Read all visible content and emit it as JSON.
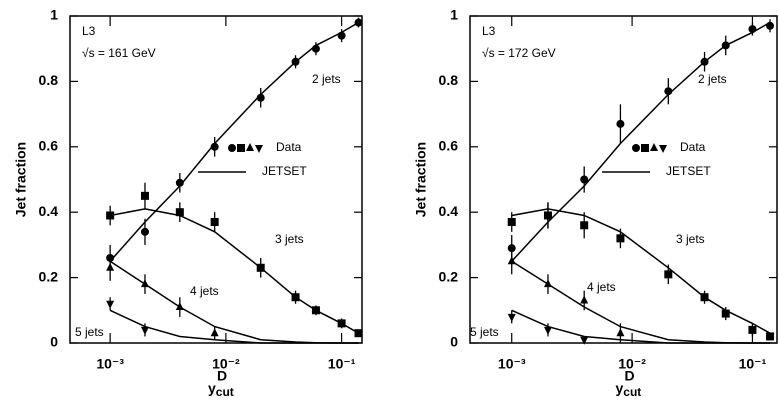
{
  "chart_data": [
    {
      "type": "scatter",
      "annotations": [
        "L3",
        "√s = 161 GeV"
      ],
      "xlabel": {
        "base": "y",
        "sup": "D",
        "sub": "cut"
      },
      "ylabel": "Jet fraction",
      "xscale": "log",
      "x": [
        0.001,
        0.002,
        0.004,
        0.008,
        0.02,
        0.04,
        0.06,
        0.1,
        0.14
      ],
      "xlim": [
        0.00045,
        0.15
      ],
      "xticks": [
        {
          "value": 0.001,
          "label": "10⁻³"
        },
        {
          "value": 0.01,
          "label": "10⁻²"
        },
        {
          "value": 0.1,
          "label": "10⁻¹"
        }
      ],
      "ylim": [
        0,
        1
      ],
      "yticks": [
        0,
        0.2,
        0.4,
        0.6,
        0.8,
        1
      ],
      "legend_labels": [
        "Data",
        "JETSET"
      ],
      "series": [
        {
          "name": "2 jets",
          "marker": "circle",
          "color": "#000000",
          "values": [
            0.26,
            0.34,
            0.49,
            0.6,
            0.75,
            0.86,
            0.9,
            0.94,
            0.98
          ],
          "errors": [
            0.04,
            0.04,
            0.03,
            0.03,
            0.03,
            0.02,
            0.02,
            0.02,
            0.015
          ],
          "model": [
            0.25,
            0.37,
            0.48,
            0.61,
            0.76,
            0.86,
            0.91,
            0.95,
            0.98
          ]
        },
        {
          "name": "3 jets",
          "marker": "square",
          "color": "#000000",
          "values": [
            0.39,
            0.45,
            0.4,
            0.37,
            0.23,
            0.14,
            0.1,
            0.06,
            0.03
          ],
          "errors": [
            0.03,
            0.04,
            0.03,
            0.03,
            0.03,
            0.02,
            0.015,
            0.015,
            0.01
          ],
          "model": [
            0.39,
            0.41,
            0.39,
            0.34,
            0.23,
            0.14,
            0.1,
            0.06,
            0.03
          ]
        },
        {
          "name": "4 jets",
          "marker": "triangle-up",
          "color": "#000000",
          "values": [
            0.23,
            0.18,
            0.11,
            0.03,
            null,
            null,
            null,
            null,
            null
          ],
          "errors": [
            0.04,
            0.03,
            0.03,
            0.02,
            null,
            null,
            null,
            null,
            null
          ],
          "model": [
            0.25,
            0.18,
            0.11,
            0.05,
            0.01,
            0.003,
            0.001,
            0,
            0
          ]
        },
        {
          "name": "5 jets",
          "marker": "triangle-down",
          "color": "#000000",
          "values": [
            0.12,
            0.04,
            null,
            null,
            null,
            null,
            null,
            null,
            null
          ],
          "errors": [
            0.02,
            0.02,
            null,
            null,
            null,
            null,
            null,
            null,
            null
          ],
          "model": [
            0.1,
            0.05,
            0.02,
            0.01,
            0,
            0,
            0,
            0,
            0
          ]
        }
      ]
    },
    {
      "type": "scatter",
      "annotations": [
        "L3",
        "√s = 172 GeV"
      ],
      "xlabel": {
        "base": "y",
        "sup": "D",
        "sub": "cut"
      },
      "ylabel": "Jet fraction",
      "xscale": "log",
      "x": [
        0.001,
        0.002,
        0.004,
        0.008,
        0.02,
        0.04,
        0.06,
        0.1,
        0.14
      ],
      "xlim": [
        0.00045,
        0.16
      ],
      "xticks": [
        {
          "value": 0.001,
          "label": "10⁻³"
        },
        {
          "value": 0.01,
          "label": "10⁻²"
        },
        {
          "value": 0.1,
          "label": "10⁻¹"
        }
      ],
      "ylim": [
        0,
        1
      ],
      "yticks": [
        0,
        0.2,
        0.4,
        0.6,
        0.8,
        1
      ],
      "legend_labels": [
        "Data",
        "JETSET"
      ],
      "series": [
        {
          "name": "2 jets",
          "marker": "circle",
          "color": "#000000",
          "values": [
            0.29,
            0.39,
            0.5,
            0.67,
            0.77,
            0.86,
            0.91,
            0.96,
            0.97
          ],
          "errors": [
            0.04,
            0.04,
            0.04,
            0.06,
            0.04,
            0.03,
            0.03,
            0.02,
            0.02
          ],
          "model": [
            0.25,
            0.37,
            0.48,
            0.61,
            0.76,
            0.86,
            0.91,
            0.95,
            0.98
          ]
        },
        {
          "name": "3 jets",
          "marker": "square",
          "color": "#000000",
          "values": [
            0.37,
            0.39,
            0.36,
            0.32,
            0.21,
            0.14,
            0.09,
            0.04,
            0.02
          ],
          "errors": [
            0.03,
            0.04,
            0.04,
            0.03,
            0.03,
            0.02,
            0.02,
            0.02,
            0.01
          ],
          "model": [
            0.39,
            0.41,
            0.39,
            0.34,
            0.23,
            0.14,
            0.1,
            0.06,
            0.03
          ]
        },
        {
          "name": "4 jets",
          "marker": "triangle-up",
          "color": "#000000",
          "values": [
            0.25,
            0.18,
            0.13,
            0.03,
            null,
            null,
            null,
            null,
            null
          ],
          "errors": [
            0.04,
            0.03,
            0.03,
            0.03,
            null,
            null,
            null,
            null,
            null
          ],
          "model": [
            0.25,
            0.18,
            0.11,
            0.05,
            0.01,
            0.003,
            0.001,
            0,
            0
          ]
        },
        {
          "name": "5 jets",
          "marker": "triangle-down",
          "color": "#000000",
          "values": [
            0.08,
            0.04,
            0.01,
            null,
            null,
            null,
            null,
            null,
            null
          ],
          "errors": [
            0.02,
            0.02,
            0.01,
            null,
            null,
            null,
            null,
            null,
            null
          ],
          "model": [
            0.1,
            0.05,
            0.02,
            0.01,
            0,
            0,
            0,
            0,
            0
          ]
        }
      ]
    }
  ]
}
